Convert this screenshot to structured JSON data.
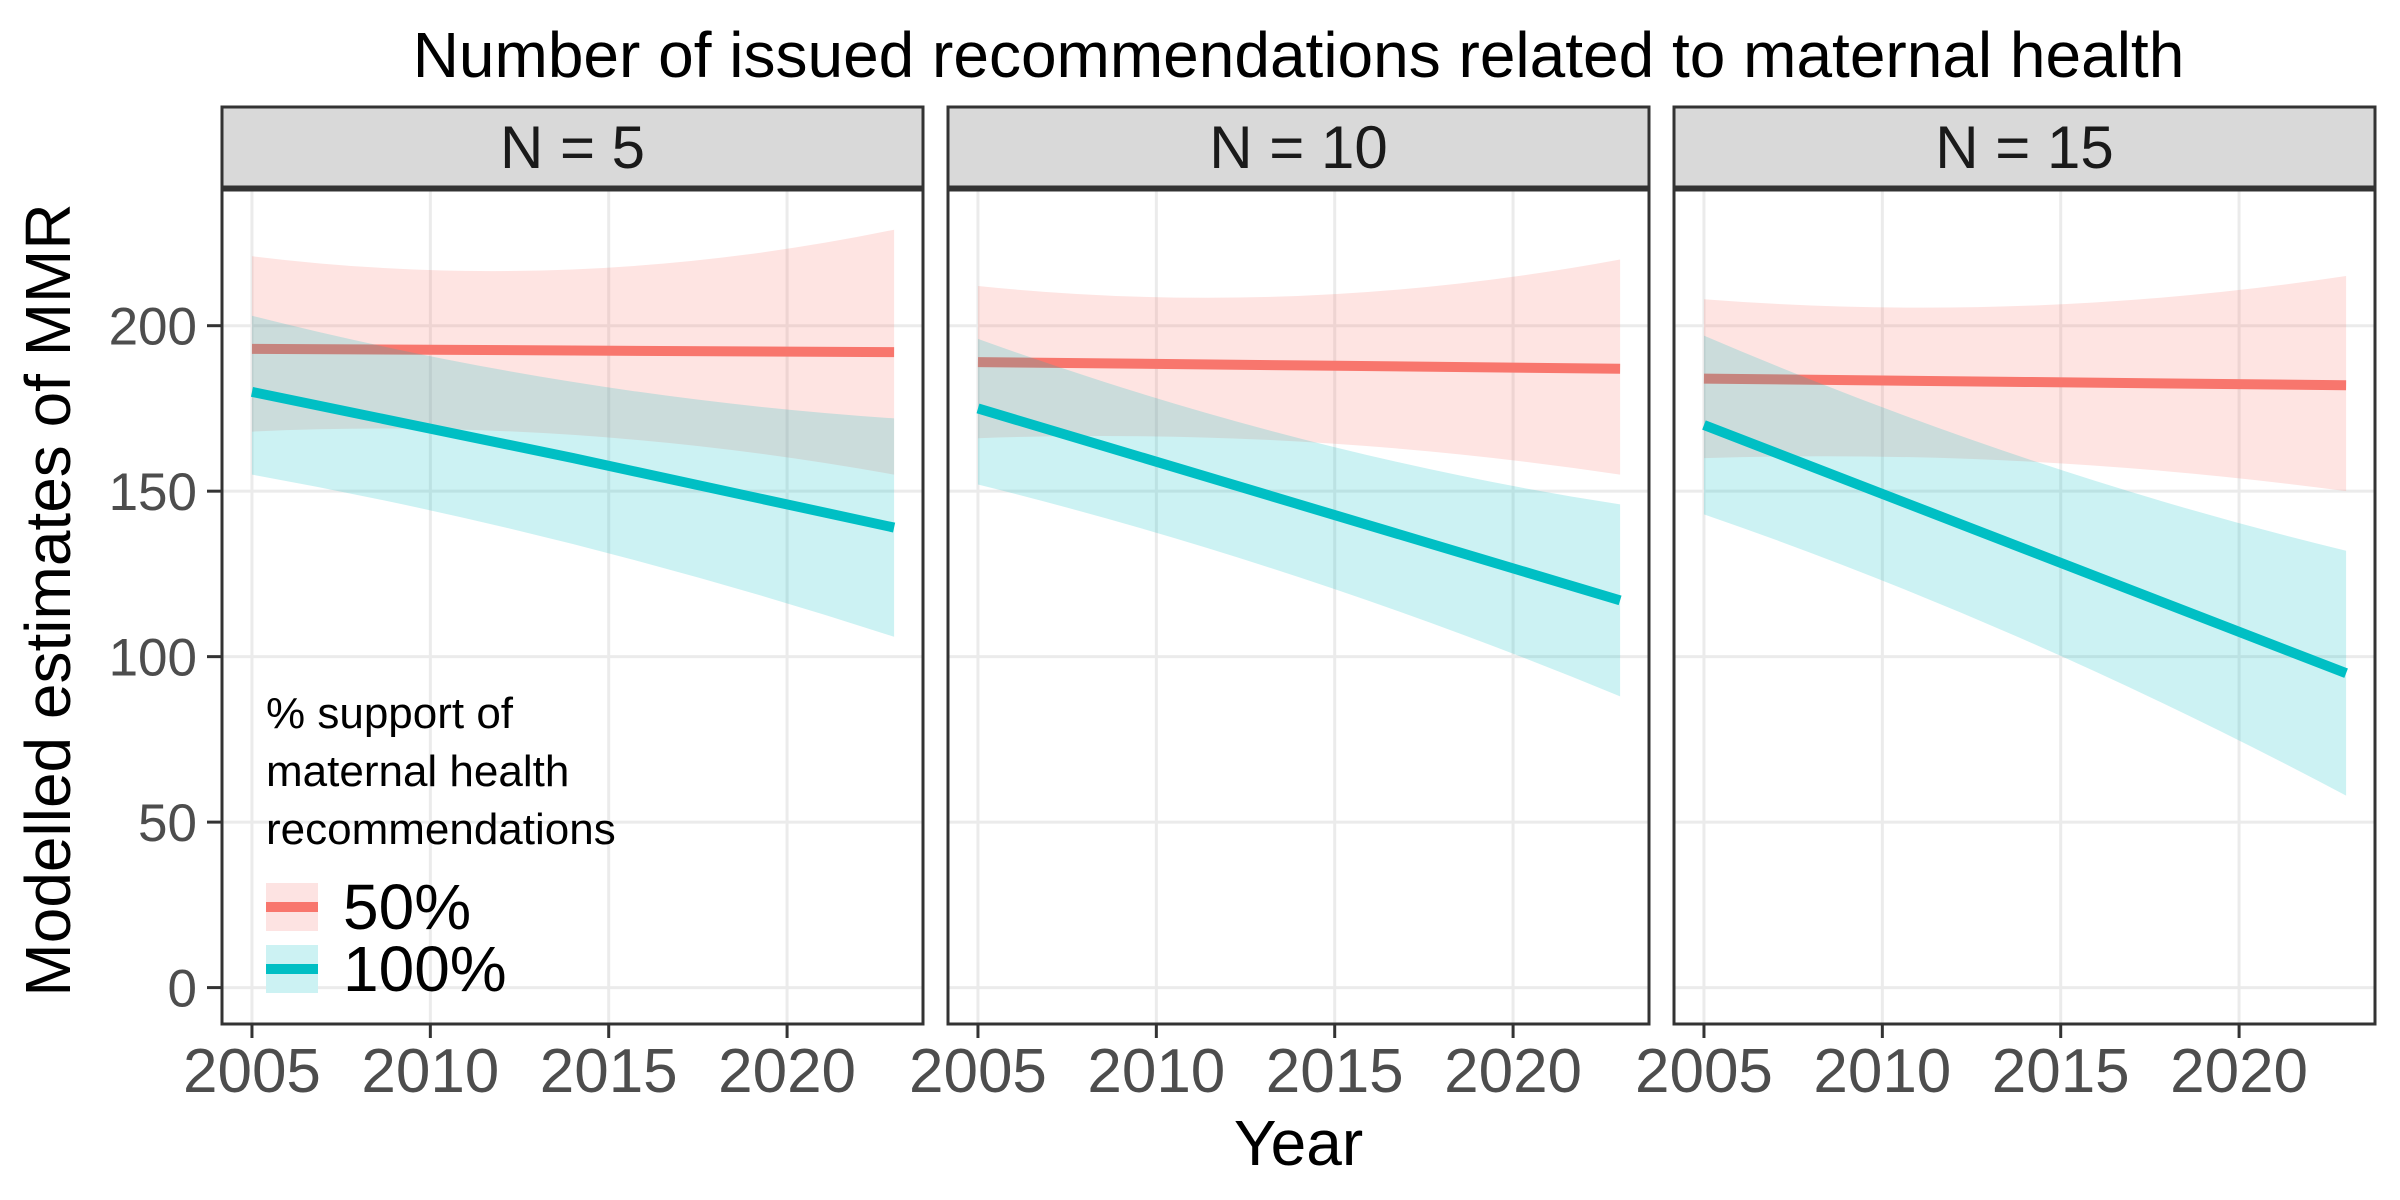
{
  "title": "Number of issued recommendations related to maternal health",
  "legend": {
    "title_lines": [
      "% support of",
      "maternal health",
      "recommendations"
    ],
    "items": [
      {
        "label": "50%",
        "line_color": "#F8766D",
        "fill_color": "#FDE3E2"
      },
      {
        "label": "100%",
        "line_color": "#00BFC4",
        "fill_color": "#CCF2F3"
      }
    ]
  },
  "styles": {
    "grid": "#EBEBEB",
    "panel_border": "#333333",
    "strip_fill": "#D9D9D9",
    "tick_mark": "#333333",
    "tick_label": "#4D4D4D",
    "title_color": "#000000"
  },
  "chart_data": {
    "type": "line",
    "title": "Number of issued recommendations related to maternal health",
    "xlabel": "Year",
    "ylabel": "Modelled estimates of MMR",
    "legend_title": "% support of maternal health recommendations",
    "legend_position": "inside bottom-left of first panel",
    "grid": "major-only",
    "x_ticks": [
      2005,
      2010,
      2015,
      2020
    ],
    "y_ticks": [
      0,
      50,
      100,
      150,
      200
    ],
    "x_domain": [
      2004.16,
      2023.81
    ],
    "y_domain": [
      -11,
      241
    ],
    "ribbon_opacity": 0.2,
    "x": [
      2005,
      2014,
      2023
    ],
    "facets": [
      {
        "label": "N = 5",
        "series": [
          {
            "name": "50%",
            "color": "#F8766D",
            "line": [
              193,
              192.5,
              192
            ],
            "ci_upper": [
              221,
              217,
              229
            ],
            "ci_lower": [
              168,
              167,
              155
            ]
          },
          {
            "name": "100%",
            "color": "#00BFC4",
            "line": [
              180,
              160,
              139
            ],
            "ci_upper": [
              203,
              183,
              172
            ],
            "ci_lower": [
              155,
              134,
              106
            ]
          }
        ]
      },
      {
        "label": "N = 10",
        "series": [
          {
            "name": "50%",
            "color": "#F8766D",
            "line": [
              189,
              188,
              187
            ],
            "ci_upper": [
              212,
              209,
              220
            ],
            "ci_lower": [
              166,
              165,
              155
            ]
          },
          {
            "name": "100%",
            "color": "#00BFC4",
            "line": [
              175,
              146,
              117
            ],
            "ci_upper": [
              196,
              166,
              146
            ],
            "ci_lower": [
              152,
              124,
              88
            ]
          }
        ]
      },
      {
        "label": "N = 15",
        "series": [
          {
            "name": "50%",
            "color": "#F8766D",
            "line": [
              184,
              183,
              182
            ],
            "ci_upper": [
              208,
              206,
              215
            ],
            "ci_lower": [
              160,
              159,
              150
            ]
          },
          {
            "name": "100%",
            "color": "#00BFC4",
            "line": [
              170,
              132.5,
              95
            ],
            "ci_upper": [
              197,
              160,
              132
            ],
            "ci_lower": [
              143,
              105,
              58
            ]
          }
        ]
      }
    ]
  }
}
